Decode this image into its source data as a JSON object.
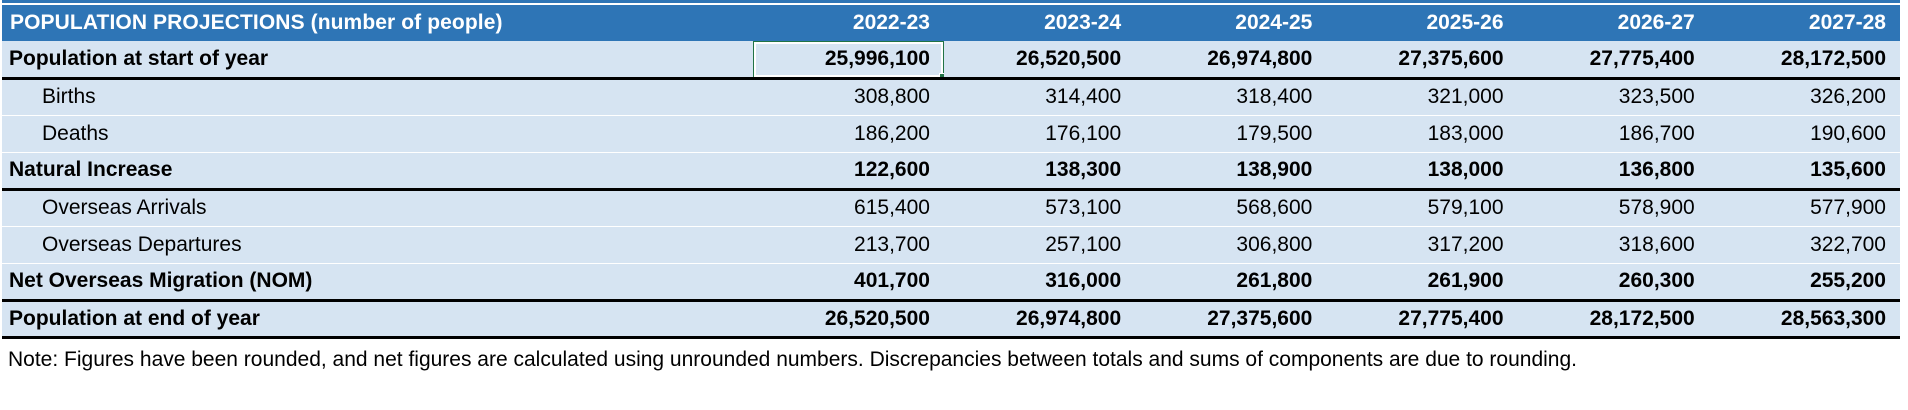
{
  "title": "POPULATION PROJECTIONS (number of people)",
  "columns": [
    "2022-23",
    "2023-24",
    "2024-25",
    "2025-26",
    "2026-27",
    "2027-28"
  ],
  "rows": [
    {
      "label": "Population at start of year",
      "style": "total",
      "heavy_bottom": true,
      "values": [
        "25,996,100",
        "26,520,500",
        "26,974,800",
        "27,375,600",
        "27,775,400",
        "28,172,500"
      ]
    },
    {
      "label": "Births",
      "style": "detail",
      "heavy_bottom": false,
      "values": [
        "308,800",
        "314,400",
        "318,400",
        "321,000",
        "323,500",
        "326,200"
      ]
    },
    {
      "label": "Deaths",
      "style": "detail",
      "heavy_bottom": false,
      "values": [
        "186,200",
        "176,100",
        "179,500",
        "183,000",
        "186,700",
        "190,600"
      ]
    },
    {
      "label": "Natural Increase",
      "style": "total",
      "heavy_bottom": true,
      "values": [
        "122,600",
        "138,300",
        "138,900",
        "138,000",
        "136,800",
        "135,600"
      ]
    },
    {
      "label": "Overseas Arrivals",
      "style": "detail",
      "heavy_bottom": false,
      "values": [
        "615,400",
        "573,100",
        "568,600",
        "579,100",
        "578,900",
        "577,900"
      ]
    },
    {
      "label": "Overseas Departures",
      "style": "detail",
      "heavy_bottom": false,
      "values": [
        "213,700",
        "257,100",
        "306,800",
        "317,200",
        "318,600",
        "322,700"
      ]
    },
    {
      "label": "Net Overseas Migration (NOM)",
      "style": "total",
      "heavy_bottom": true,
      "values": [
        "401,700",
        "316,000",
        "261,800",
        "261,900",
        "260,300",
        "255,200"
      ]
    },
    {
      "label": "Population at end of year",
      "style": "total",
      "heavy_bottom": true,
      "values": [
        "26,520,500",
        "26,974,800",
        "27,375,600",
        "27,775,400",
        "28,172,500",
        "28,563,300"
      ]
    }
  ],
  "selection": {
    "row_index": 0,
    "col_index": 0,
    "row_label": "Population at start of year",
    "column": "2022-23",
    "value": "25,996,100"
  },
  "note": "Note: Figures have been rounded, and net figures are calculated using unrounded numbers. Discrepancies between totals and sums of components are due to rounding.",
  "colors": {
    "header_bg": "#2E75B6",
    "body_bg": "#D6E4F2",
    "heavy_border": "#000000",
    "selection_green": "#217346",
    "header_text": "#FFFFFF"
  }
}
